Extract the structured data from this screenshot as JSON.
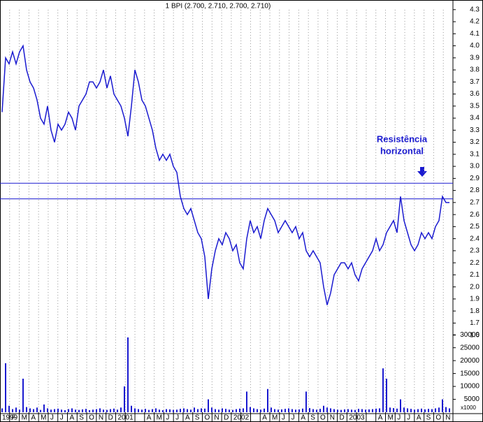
{
  "chart_data": {
    "type": "stock",
    "title": "1 BPI (2.700, 2.710, 2.700, 2.710)",
    "categories": [
      "1999",
      "F",
      "M",
      "A",
      "M",
      "J",
      "J",
      "A",
      "S",
      "O",
      "N",
      "D",
      "2001",
      null,
      null,
      "A",
      "M",
      "J",
      "J",
      "A",
      "S",
      "O",
      "N",
      "D",
      "2002",
      null,
      null,
      "A",
      "M",
      "J",
      "J",
      "A",
      "S",
      "O",
      "N",
      "D",
      "2003",
      null,
      null,
      "A",
      "M",
      "J",
      "J",
      "A",
      "S",
      "O",
      "N"
    ],
    "price": {
      "color": "#1a1ad0",
      "values": [
        3.45,
        3.9,
        3.85,
        3.95,
        3.85,
        3.95,
        4.0,
        3.8,
        3.7,
        3.65,
        3.55,
        3.4,
        3.35,
        3.5,
        3.3,
        3.2,
        3.35,
        3.3,
        3.35,
        3.45,
        3.4,
        3.3,
        3.5,
        3.55,
        3.6,
        3.7,
        3.7,
        3.65,
        3.7,
        3.8,
        3.65,
        3.75,
        3.6,
        3.55,
        3.5,
        3.4,
        3.25,
        3.5,
        3.8,
        3.7,
        3.55,
        3.5,
        3.4,
        3.3,
        3.15,
        3.05,
        3.1,
        3.05,
        3.1,
        3.0,
        2.95,
        2.75,
        2.65,
        2.6,
        2.65,
        2.55,
        2.45,
        2.4,
        2.25,
        1.9,
        2.15,
        2.3,
        2.4,
        2.35,
        2.45,
        2.4,
        2.3,
        2.35,
        2.2,
        2.15,
        2.4,
        2.55,
        2.45,
        2.5,
        2.4,
        2.55,
        2.65,
        2.6,
        2.55,
        2.45,
        2.5,
        2.55,
        2.5,
        2.45,
        2.5,
        2.4,
        2.45,
        2.3,
        2.25,
        2.3,
        2.25,
        2.2,
        2.0,
        1.85,
        1.95,
        2.1,
        2.15,
        2.2,
        2.2,
        2.15,
        2.2,
        2.1,
        2.05,
        2.15,
        2.2,
        2.25,
        2.3,
        2.4,
        2.3,
        2.35,
        2.45,
        2.5,
        2.55,
        2.45,
        2.75,
        2.55,
        2.45,
        2.35,
        2.3,
        2.35,
        2.45,
        2.4,
        2.45,
        2.4,
        2.5,
        2.55,
        2.75,
        2.7,
        2.7
      ]
    },
    "volume": {
      "color": "#1a1ad0",
      "values": [
        1500,
        19000,
        2500,
        1200,
        1800,
        1000,
        13000,
        2000,
        1500,
        1200,
        1800,
        900,
        3000,
        1500,
        1000,
        1200,
        1400,
        1000,
        800,
        1200,
        1500,
        1000,
        900,
        1100,
        1300,
        800,
        1000,
        1200,
        1500,
        1000,
        900,
        1200,
        1400,
        1000,
        1800,
        10000,
        29000,
        2500,
        1500,
        1200,
        1000,
        1300,
        900,
        1200,
        1500,
        1000,
        800,
        1200,
        1100,
        900,
        1000,
        1300,
        1500,
        1200,
        1000,
        1800,
        1200,
        1500,
        1400,
        5000,
        1800,
        1200,
        1000,
        1500,
        1300,
        1000,
        900,
        1200,
        1400,
        1500,
        8000,
        2000,
        1500,
        1200,
        1000,
        1400,
        9000,
        1800,
        1200,
        1000,
        1100,
        1300,
        1500,
        1200,
        1000,
        1100,
        1400,
        8000,
        1600,
        1200,
        1000,
        1300,
        2500,
        1800,
        1500,
        1200,
        1000,
        900,
        1100,
        1200,
        1000,
        900,
        1300,
        1200,
        1000,
        1100,
        1200,
        1400,
        1500,
        17000,
        13000,
        1800,
        1600,
        1400,
        5000,
        1800,
        1500,
        1300,
        1000,
        1200,
        1400,
        1100,
        1300,
        1200,
        1500,
        1800,
        5000,
        2000,
        1500
      ]
    },
    "ylim": [
      1.54,
      4.38
    ],
    "yticks": [
      1.6,
      1.7,
      1.8,
      1.9,
      {
        "value": 2.0,
        "label": "2.0"
      },
      2.1,
      2.2,
      2.3,
      2.4,
      2.5,
      2.6,
      2.7,
      2.8,
      2.9,
      {
        "value": 3.0,
        "label": "3.0"
      },
      3.1,
      3.2,
      3.3,
      3.4,
      3.5,
      3.6,
      3.7,
      3.8,
      3.9,
      {
        "value": 4.0,
        "label": "4.0"
      },
      4.1,
      4.2,
      4.3
    ],
    "volume_ylim": [
      0,
      32500
    ],
    "volume_yticks": [
      5000,
      10000,
      15000,
      20000,
      25000,
      30000
    ],
    "volume_unit": "x1000",
    "resistance_lines": [
      2.86,
      2.73
    ],
    "annotation": [
      "Resistência",
      "horizontal"
    ]
  }
}
